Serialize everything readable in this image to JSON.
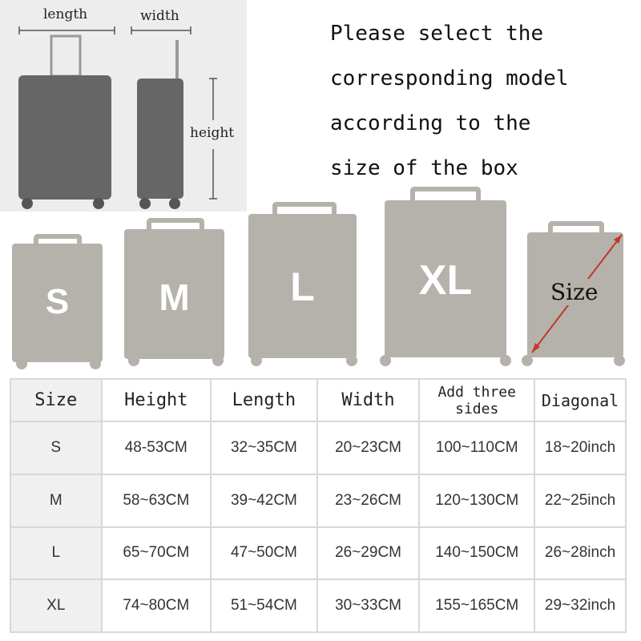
{
  "diagram": {
    "length_label": "length",
    "width_label": "width",
    "height_label": "height"
  },
  "instruction": "Please select the\ncorresponding model\naccording to the\nsize of the box",
  "suitcases": [
    {
      "label": "S"
    },
    {
      "label": "M"
    },
    {
      "label": "L"
    },
    {
      "label": "XL"
    },
    {
      "label": "Size"
    }
  ],
  "colors": {
    "case": "#b5b1ab",
    "arrow": "#c0392b",
    "diagram_case": "#666666"
  },
  "table": {
    "headers": [
      "Size",
      "Height",
      "Length",
      "Width",
      "Add three sides",
      "Diagonal"
    ],
    "rows": [
      [
        "S",
        "48-53CM",
        "32~35CM",
        "20~23CM",
        "100~110CM",
        "18~20inch"
      ],
      [
        "M",
        "58~63CM",
        "39~42CM",
        "23~26CM",
        "120~130CM",
        "22~25inch"
      ],
      [
        "L",
        "65~70CM",
        "47~50CM",
        "26~29CM",
        "140~150CM",
        "26~28inch"
      ],
      [
        "XL",
        "74~80CM",
        "51~54CM",
        "30~33CM",
        "155~165CM",
        "29~32inch"
      ]
    ]
  }
}
